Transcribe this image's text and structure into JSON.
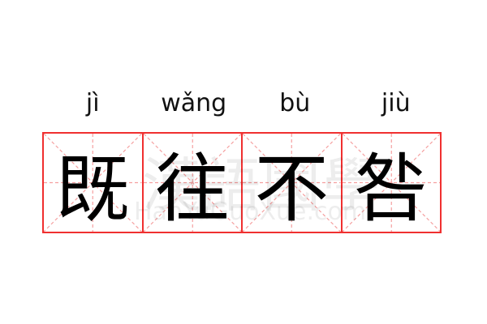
{
  "idiom": {
    "pinyin": [
      "jì",
      "wǎng",
      "bù",
      "jiù"
    ],
    "characters": [
      "既",
      "往",
      "不",
      "咎"
    ]
  },
  "watermark": {
    "chinese": "漢語國學",
    "latin": "HanYuGuoXue.com"
  },
  "colors": {
    "grid_border": "#f03030",
    "grid_guides": "#f5a0a0"
  }
}
